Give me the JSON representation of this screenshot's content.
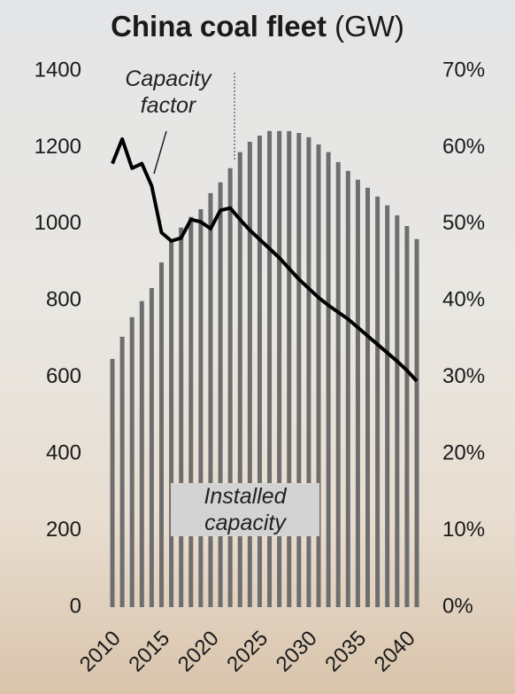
{
  "chart_data": {
    "type": "bar-line",
    "title": "China coal fleet",
    "title_unit": "(GW)",
    "x": [
      2010,
      2011,
      2012,
      2013,
      2014,
      2015,
      2016,
      2017,
      2018,
      2019,
      2020,
      2021,
      2022,
      2023,
      2024,
      2025,
      2026,
      2027,
      2028,
      2029,
      2030,
      2031,
      2032,
      2033,
      2034,
      2035,
      2036,
      2037,
      2038,
      2039,
      2040,
      2041
    ],
    "xlim": [
      2010,
      2041
    ],
    "xticks": [
      2010,
      2015,
      2020,
      2025,
      2030,
      2035,
      2040
    ],
    "ylim": [
      0,
      1400
    ],
    "yticks": [
      0,
      200,
      400,
      600,
      800,
      1000,
      1200,
      1400
    ],
    "y2lim": [
      0,
      70
    ],
    "y2ticks": [
      {
        "value": 0,
        "label": "0%"
      },
      {
        "value": 10,
        "label": "10%"
      },
      {
        "value": 20,
        "label": "20%"
      },
      {
        "value": 30,
        "label": "30%"
      },
      {
        "value": 40,
        "label": "40%"
      },
      {
        "value": 50,
        "label": "50%"
      },
      {
        "value": 60,
        "label": "60%"
      },
      {
        "value": 70,
        "label": "70%"
      }
    ],
    "series": [
      {
        "name": "Installed capacity",
        "type": "bar",
        "color": "#6e6e6e",
        "values": [
          648,
          706,
          757,
          799,
          833,
          900,
          961,
          991,
          1019,
          1039,
          1081,
          1109,
          1146,
          1188,
          1215,
          1231,
          1243,
          1243,
          1243,
          1238,
          1227,
          1208,
          1188,
          1162,
          1139,
          1116,
          1095,
          1072,
          1049,
          1023,
          995,
          961
        ]
      },
      {
        "name": "Capacity factor",
        "type": "line",
        "axis": "y2",
        "color": "#000000",
        "values": [
          57.9,
          61.1,
          57.3,
          57.9,
          55.0,
          48.9,
          47.8,
          48.2,
          50.6,
          50.3,
          49.4,
          51.8,
          52.1,
          50.6,
          49.2,
          48.0,
          46.8,
          45.6,
          44.2,
          42.8,
          41.6,
          40.4,
          39.4,
          38.5,
          37.6,
          36.5,
          35.4,
          34.3,
          33.2,
          32.1,
          30.9,
          29.5
        ]
      }
    ]
  }
}
